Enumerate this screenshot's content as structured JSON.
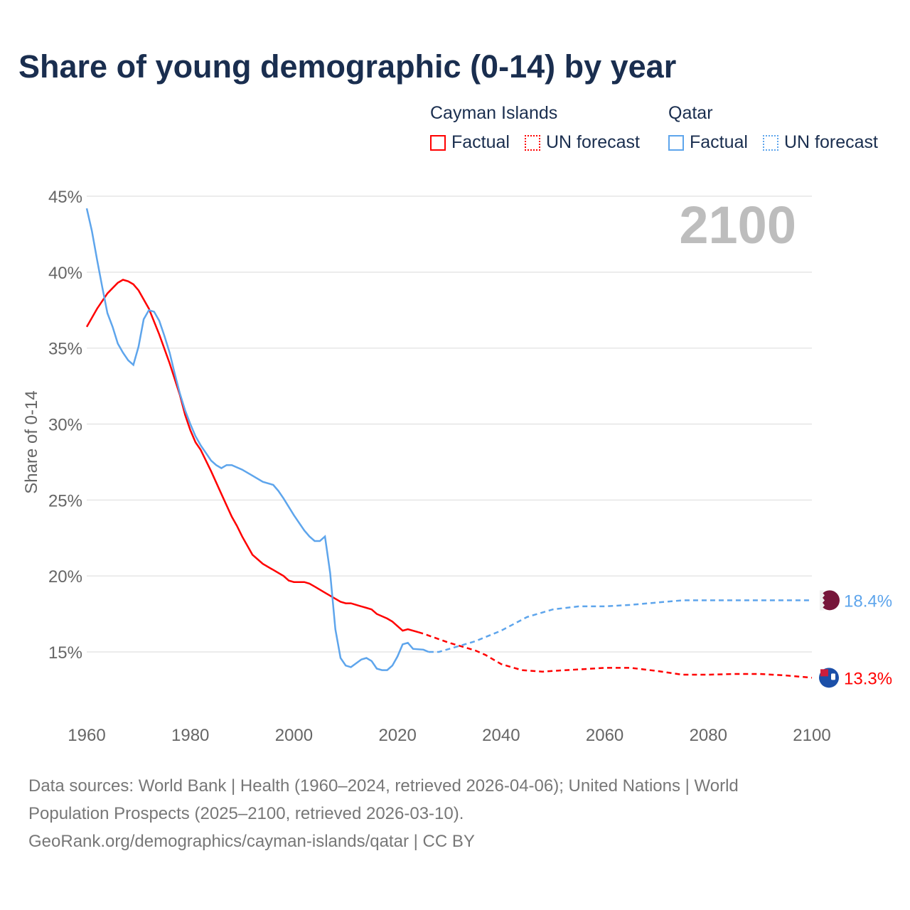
{
  "title": "Share of young demographic (0-14) by year",
  "legend": {
    "groups": [
      {
        "name": "Cayman Islands",
        "factual": "Factual",
        "forecast": "UN forecast",
        "color": "#ff0000"
      },
      {
        "name": "Qatar",
        "factual": "Factual",
        "forecast": "UN forecast",
        "color": "#5ea5ec"
      }
    ]
  },
  "year_label": "2100",
  "footer": {
    "line1": "Data sources: World Bank | Health (1960–2024, retrieved 2026-04-06); United Nations | World",
    "line2": "Population Prospects (2025–2100, retrieved 2026-03-10).",
    "line3": "GeoRank.org/demographics/cayman-islands/qatar | CC BY"
  },
  "chart_data": {
    "type": "line",
    "title": "Share of young demographic (0-14) by year",
    "xlabel": "",
    "ylabel": "Share of 0-14",
    "xlim": [
      1960,
      2100
    ],
    "ylim": [
      12,
      45
    ],
    "x_ticks": [
      "1960",
      "1980",
      "2000",
      "2020",
      "2040",
      "2060",
      "2080",
      "2100"
    ],
    "y_ticks": [
      "15%",
      "20%",
      "25%",
      "30%",
      "35%",
      "40%",
      "45%"
    ],
    "grid": true,
    "series": [
      {
        "name": "Cayman Islands",
        "color": "#ff0000",
        "end_label": "13.3%",
        "factual": [
          [
            1960,
            36.4
          ],
          [
            1962,
            37.6
          ],
          [
            1964,
            38.6
          ],
          [
            1966,
            39.3
          ],
          [
            1967,
            39.5
          ],
          [
            1968,
            39.4
          ],
          [
            1969,
            39.2
          ],
          [
            1970,
            38.8
          ],
          [
            1972,
            37.6
          ],
          [
            1974,
            35.9
          ],
          [
            1976,
            34.0
          ],
          [
            1978,
            31.9
          ],
          [
            1979,
            30.6
          ],
          [
            1980,
            29.6
          ],
          [
            1981,
            28.8
          ],
          [
            1982,
            28.3
          ],
          [
            1984,
            26.9
          ],
          [
            1986,
            25.4
          ],
          [
            1988,
            23.9
          ],
          [
            1989,
            23.3
          ],
          [
            1990,
            22.6
          ],
          [
            1992,
            21.4
          ],
          [
            1994,
            20.8
          ],
          [
            1996,
            20.4
          ],
          [
            1998,
            20.0
          ],
          [
            1999,
            19.7
          ],
          [
            2000,
            19.6
          ],
          [
            2002,
            19.6
          ],
          [
            2003,
            19.5
          ],
          [
            2004,
            19.3
          ],
          [
            2006,
            18.9
          ],
          [
            2008,
            18.5
          ],
          [
            2009,
            18.3
          ],
          [
            2010,
            18.2
          ],
          [
            2011,
            18.2
          ],
          [
            2013,
            18.0
          ],
          [
            2014,
            17.9
          ],
          [
            2015,
            17.8
          ],
          [
            2016,
            17.5
          ],
          [
            2018,
            17.2
          ],
          [
            2019,
            17.0
          ],
          [
            2020,
            16.7
          ],
          [
            2021,
            16.4
          ],
          [
            2022,
            16.5
          ],
          [
            2024,
            16.3
          ]
        ],
        "forecast": [
          [
            2024,
            16.3
          ],
          [
            2025,
            16.2
          ],
          [
            2030,
            15.6
          ],
          [
            2035,
            15.1
          ],
          [
            2037,
            14.8
          ],
          [
            2040,
            14.2
          ],
          [
            2044,
            13.8
          ],
          [
            2048,
            13.7
          ],
          [
            2050,
            13.75
          ],
          [
            2055,
            13.85
          ],
          [
            2060,
            13.95
          ],
          [
            2065,
            13.95
          ],
          [
            2070,
            13.75
          ],
          [
            2075,
            13.5
          ],
          [
            2080,
            13.5
          ],
          [
            2085,
            13.55
          ],
          [
            2090,
            13.55
          ],
          [
            2095,
            13.45
          ],
          [
            2100,
            13.3
          ]
        ]
      },
      {
        "name": "Qatar",
        "color": "#5ea5ec",
        "end_label": "18.4%",
        "factual": [
          [
            1960,
            44.2
          ],
          [
            1961,
            42.7
          ],
          [
            1962,
            40.8
          ],
          [
            1963,
            39.0
          ],
          [
            1964,
            37.3
          ],
          [
            1965,
            36.4
          ],
          [
            1966,
            35.3
          ],
          [
            1967,
            34.7
          ],
          [
            1968,
            34.2
          ],
          [
            1969,
            33.9
          ],
          [
            1970,
            35.1
          ],
          [
            1971,
            36.9
          ],
          [
            1972,
            37.5
          ],
          [
            1973,
            37.4
          ],
          [
            1974,
            36.8
          ],
          [
            1975,
            35.8
          ],
          [
            1976,
            34.7
          ],
          [
            1977,
            33.3
          ],
          [
            1978,
            32.0
          ],
          [
            1979,
            30.9
          ],
          [
            1980,
            30.0
          ],
          [
            1981,
            29.2
          ],
          [
            1982,
            28.6
          ],
          [
            1983,
            28.1
          ],
          [
            1984,
            27.6
          ],
          [
            1985,
            27.3
          ],
          [
            1986,
            27.1
          ],
          [
            1987,
            27.3
          ],
          [
            1988,
            27.3
          ],
          [
            1990,
            27.0
          ],
          [
            1992,
            26.6
          ],
          [
            1994,
            26.2
          ],
          [
            1996,
            26.0
          ],
          [
            1997,
            25.6
          ],
          [
            1998,
            25.1
          ],
          [
            2000,
            24.0
          ],
          [
            2002,
            23.0
          ],
          [
            2003,
            22.6
          ],
          [
            2004,
            22.3
          ],
          [
            2005,
            22.3
          ],
          [
            2006,
            22.6
          ],
          [
            2007,
            20.2
          ],
          [
            2008,
            16.5
          ],
          [
            2009,
            14.6
          ],
          [
            2010,
            14.1
          ],
          [
            2011,
            14.0
          ],
          [
            2013,
            14.5
          ],
          [
            2014,
            14.6
          ],
          [
            2015,
            14.4
          ],
          [
            2016,
            13.9
          ],
          [
            2017,
            13.8
          ],
          [
            2018,
            13.8
          ],
          [
            2019,
            14.1
          ],
          [
            2020,
            14.7
          ],
          [
            2021,
            15.5
          ],
          [
            2022,
            15.6
          ],
          [
            2023,
            15.2
          ],
          [
            2025,
            15.15
          ],
          [
            2026,
            15.0
          ]
        ],
        "forecast": [
          [
            2026,
            15.0
          ],
          [
            2028,
            15.0
          ],
          [
            2030,
            15.2
          ],
          [
            2035,
            15.7
          ],
          [
            2040,
            16.4
          ],
          [
            2045,
            17.3
          ],
          [
            2050,
            17.8
          ],
          [
            2055,
            18.0
          ],
          [
            2060,
            18.0
          ],
          [
            2065,
            18.1
          ],
          [
            2070,
            18.25
          ],
          [
            2075,
            18.4
          ],
          [
            2080,
            18.4
          ],
          [
            2090,
            18.4
          ],
          [
            2100,
            18.4
          ]
        ]
      }
    ]
  }
}
